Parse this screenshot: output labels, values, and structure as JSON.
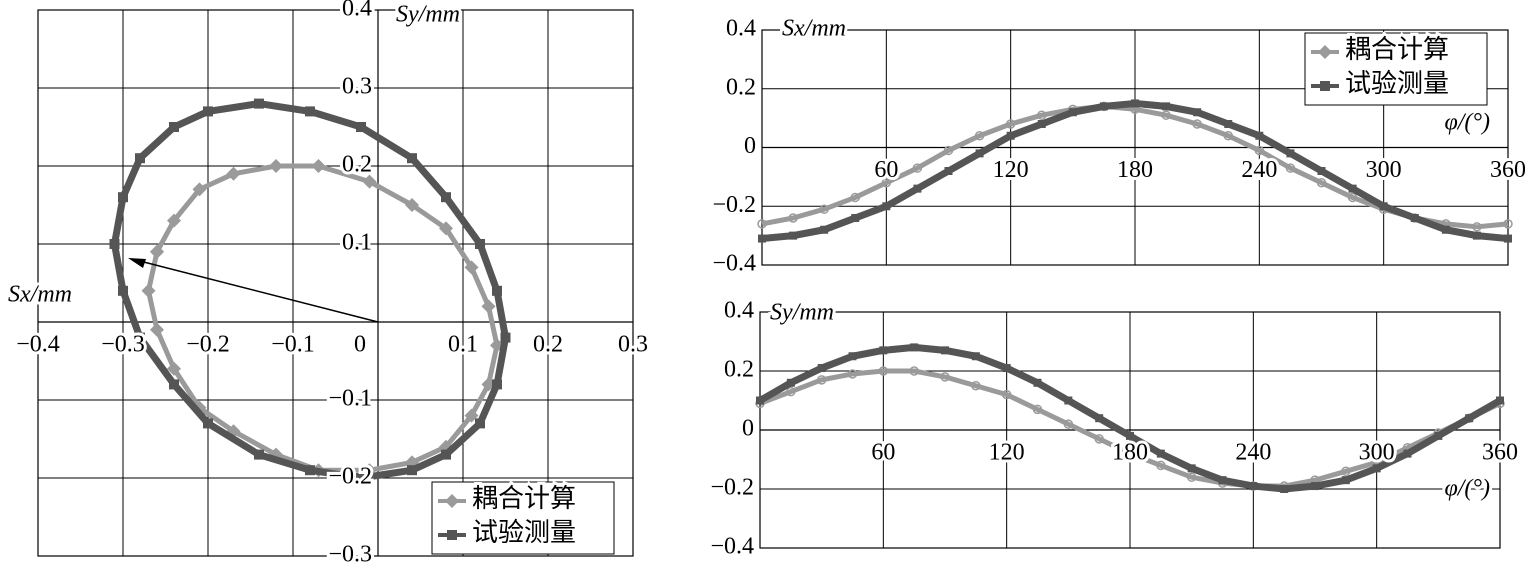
{
  "chart_data": [
    {
      "type": "line",
      "x_label": "Sx/mm",
      "y_label": "Sy/mm",
      "xlim": [
        -0.4,
        0.3
      ],
      "ylim": [
        -0.3,
        0.4
      ],
      "xticks": [
        {
          "value": -0.4,
          "label": "−0.4"
        },
        {
          "value": -0.3,
          "label": "−0.3"
        },
        {
          "value": -0.2,
          "label": "−0.2"
        },
        {
          "value": -0.1,
          "label": "−0.1"
        },
        0,
        0.1,
        0.2,
        0.3
      ],
      "yticks": [
        {
          "value": -0.3,
          "label": "−0.3"
        },
        {
          "value": -0.2,
          "label": "−0.2"
        },
        {
          "value": -0.1,
          "label": "−0.1"
        },
        0.1,
        0.2,
        0.3,
        0.4
      ],
      "grid": true,
      "legend": "lower right",
      "series": [
        {
          "name": "耦合计算",
          "color": "#9a9a9a",
          "marker": "diamond",
          "x": [
            -0.26,
            -0.24,
            -0.21,
            -0.17,
            -0.12,
            -0.07,
            -0.01,
            0.04,
            0.08,
            0.11,
            0.13,
            0.14,
            0.13,
            0.11,
            0.08,
            0.04,
            -0.01,
            -0.07,
            -0.12,
            -0.17,
            -0.21,
            -0.24,
            -0.26,
            -0.27,
            -0.26
          ],
          "values": [
            0.09,
            0.13,
            0.17,
            0.19,
            0.2,
            0.2,
            0.18,
            0.15,
            0.12,
            0.07,
            0.02,
            -0.03,
            -0.08,
            -0.12,
            -0.16,
            -0.18,
            -0.19,
            -0.19,
            -0.17,
            -0.14,
            -0.11,
            -0.06,
            -0.01,
            0.04,
            0.09
          ]
        },
        {
          "name": "试验测量",
          "color": "#555555",
          "marker": "square",
          "x": [
            -0.31,
            -0.3,
            -0.28,
            -0.24,
            -0.2,
            -0.14,
            -0.08,
            -0.02,
            0.04,
            0.08,
            0.12,
            0.14,
            0.15,
            0.14,
            0.12,
            0.08,
            0.04,
            -0.02,
            -0.08,
            -0.14,
            -0.2,
            -0.24,
            -0.28,
            -0.3,
            -0.31
          ],
          "values": [
            0.1,
            0.16,
            0.21,
            0.25,
            0.27,
            0.28,
            0.27,
            0.25,
            0.21,
            0.16,
            0.1,
            0.04,
            -0.02,
            -0.08,
            -0.13,
            -0.17,
            -0.19,
            -0.2,
            -0.19,
            -0.17,
            -0.13,
            -0.08,
            -0.02,
            0.04,
            0.1
          ]
        }
      ]
    },
    {
      "type": "line",
      "x_label": "φ/(°)",
      "y_label": "Sx/mm",
      "xlim": [
        0,
        360
      ],
      "ylim": [
        -0.4,
        0.4
      ],
      "xticks": [
        60,
        120,
        180,
        240,
        300,
        360
      ],
      "yticks": [
        {
          "value": -0.4,
          "label": "−0.4"
        },
        {
          "value": -0.2,
          "label": "−0.2"
        },
        0,
        0.2,
        0.4
      ],
      "grid": true,
      "legend": "upper right",
      "x": [
        0,
        15,
        30,
        45,
        60,
        75,
        90,
        105,
        120,
        135,
        150,
        165,
        180,
        195,
        210,
        225,
        240,
        255,
        270,
        285,
        300,
        315,
        330,
        345,
        360
      ],
      "series": [
        {
          "name": "耦合计算",
          "color": "#9a9a9a",
          "marker": "open-circle",
          "values": [
            -0.26,
            -0.24,
            -0.21,
            -0.17,
            -0.12,
            -0.07,
            -0.01,
            0.04,
            0.08,
            0.11,
            0.13,
            0.14,
            0.13,
            0.11,
            0.08,
            0.04,
            -0.01,
            -0.07,
            -0.12,
            -0.17,
            -0.21,
            -0.24,
            -0.26,
            -0.27,
            -0.26
          ]
        },
        {
          "name": "试验测量",
          "color": "#555555",
          "marker": "square",
          "values": [
            -0.31,
            -0.3,
            -0.28,
            -0.24,
            -0.2,
            -0.14,
            -0.08,
            -0.02,
            0.04,
            0.08,
            0.12,
            0.14,
            0.15,
            0.14,
            0.12,
            0.08,
            0.04,
            -0.02,
            -0.08,
            -0.14,
            -0.2,
            -0.24,
            -0.28,
            -0.3,
            -0.31
          ]
        }
      ]
    },
    {
      "type": "line",
      "x_label": "φ/(°)",
      "y_label": "Sy/mm",
      "xlim": [
        0,
        360
      ],
      "ylim": [
        -0.4,
        0.4
      ],
      "xticks": [
        60,
        120,
        180,
        240,
        300,
        360
      ],
      "yticks": [
        {
          "value": -0.4,
          "label": "−0.4"
        },
        {
          "value": -0.2,
          "label": "−0.2"
        },
        0,
        0.2,
        0.4
      ],
      "grid": true,
      "x": [
        0,
        15,
        30,
        45,
        60,
        75,
        90,
        105,
        120,
        135,
        150,
        165,
        180,
        195,
        210,
        225,
        240,
        255,
        270,
        285,
        300,
        315,
        330,
        345,
        360
      ],
      "series": [
        {
          "color": "#9a9a9a",
          "marker": "open-circle",
          "values": [
            0.09,
            0.13,
            0.17,
            0.19,
            0.2,
            0.2,
            0.18,
            0.15,
            0.12,
            0.07,
            0.02,
            -0.03,
            -0.08,
            -0.12,
            -0.16,
            -0.18,
            -0.19,
            -0.19,
            -0.17,
            -0.14,
            -0.11,
            -0.06,
            -0.01,
            0.04,
            0.09
          ]
        },
        {
          "color": "#555555",
          "marker": "square",
          "values": [
            0.1,
            0.16,
            0.21,
            0.25,
            0.27,
            0.28,
            0.27,
            0.25,
            0.21,
            0.16,
            0.1,
            0.04,
            -0.02,
            -0.08,
            -0.13,
            -0.17,
            -0.19,
            -0.2,
            -0.19,
            -0.17,
            -0.13,
            -0.08,
            -0.02,
            0.04,
            0.1
          ]
        }
      ]
    }
  ]
}
